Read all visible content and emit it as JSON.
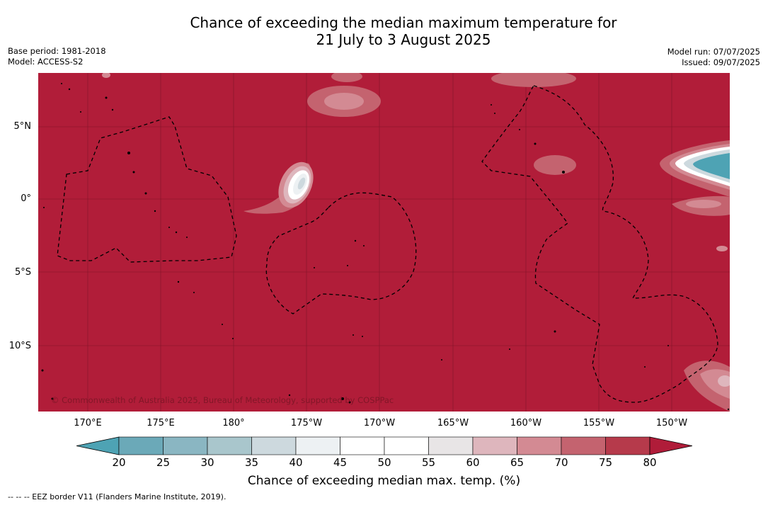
{
  "title_line1": "Chance of exceeding the median maximum temperature for",
  "title_line2": "21 July to 3 August 2025",
  "base_period": "Base period: 1981-2018",
  "model": "Model: ACCESS-S2",
  "model_run": "Model run: 07/07/2025",
  "issued": "Issued: 09/07/2025",
  "copyright": "© Commonwealth of Australia 2025, Bureau of Meteorology, supported by COSPPac",
  "footnote": "--  --  -- EEZ border V11 (Flanders Marine Institute, 2019).",
  "lat_ticks": [
    "5°N",
    "0°",
    "5°S",
    "10°S"
  ],
  "lon_ticks": [
    "170°E",
    "175°E",
    "180°",
    "175°W",
    "170°W",
    "165°W",
    "160°W",
    "155°W",
    "150°W"
  ],
  "colorbar": {
    "title": "Chance of exceeding median max. temp. (%)",
    "labels": [
      "20",
      "25",
      "30",
      "35",
      "40",
      "45",
      "50",
      "55",
      "60",
      "65",
      "70",
      "75",
      "80"
    ],
    "colors": [
      "#4ea3b4",
      "#6ba9b8",
      "#8ab6c2",
      "#a9c6cc",
      "#cdd9de",
      "#edf1f3",
      "#ffffff",
      "#ffffff",
      "#e8e5e6",
      "#deb6bd",
      "#d38a93",
      "#c4636f",
      "#b63a4b",
      "#b01c39"
    ]
  },
  "map": {
    "background_color": "#b11d39",
    "high_prob_label": "80"
  }
}
